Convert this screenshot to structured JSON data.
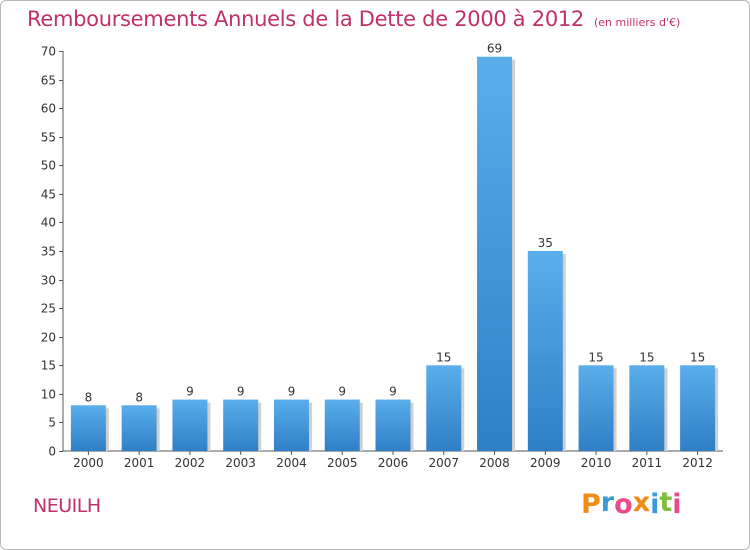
{
  "header": {
    "title": "Remboursements Annuels de la Dette de 2000 à 2012",
    "unit": "(en milliers d'€)"
  },
  "footer": {
    "commune": "NEUILH",
    "logo_letters": [
      "P",
      "r",
      "o",
      "x",
      "i",
      "t",
      "i"
    ]
  },
  "colors": {
    "title": "#c0306a",
    "bar_top": "#5aaeea",
    "bar_bottom": "#2f7fc6",
    "logo": [
      "#f08a18",
      "#3a9ad9",
      "#e84a8a",
      "#f08a18",
      "#3a9ad9",
      "#7bbf3a",
      "#e84a8a"
    ]
  },
  "chart_data": {
    "type": "bar",
    "title": "Remboursements Annuels de la Dette de 2000 à 2012",
    "xlabel": "",
    "ylabel": "",
    "categories": [
      "2000",
      "2001",
      "2002",
      "2003",
      "2004",
      "2005",
      "2006",
      "2007",
      "2008",
      "2009",
      "2010",
      "2011",
      "2012"
    ],
    "values": [
      8,
      8,
      9,
      9,
      9,
      9,
      9,
      15,
      69,
      35,
      15,
      15,
      15
    ],
    "ylim": [
      0,
      70
    ],
    "yticks": [
      0,
      5,
      10,
      15,
      20,
      25,
      30,
      35,
      40,
      45,
      50,
      55,
      60,
      65,
      70
    ],
    "grid": false,
    "legend": "none",
    "data_labels": true
  }
}
